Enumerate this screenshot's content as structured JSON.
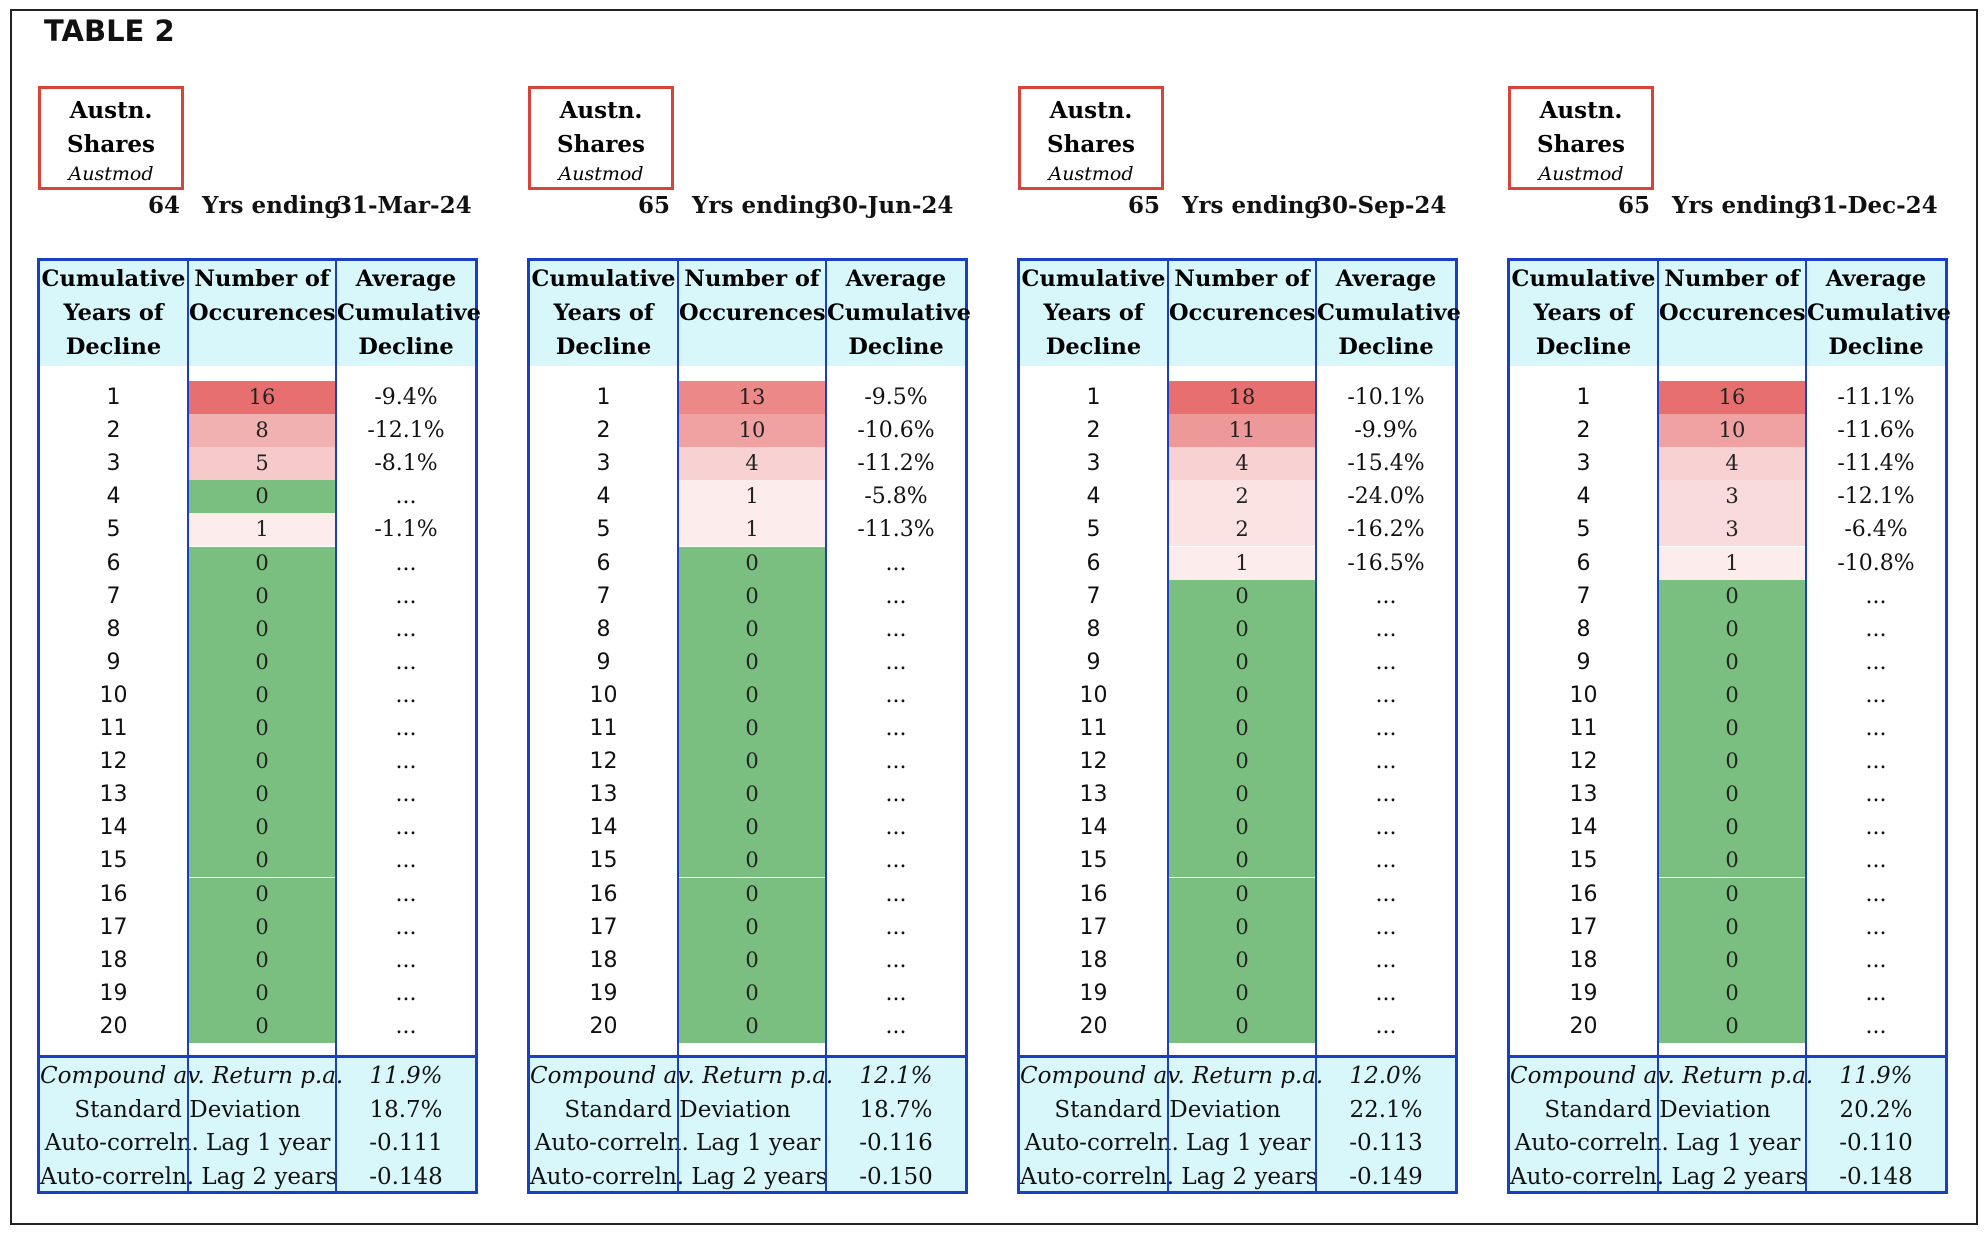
{
  "title": "TABLE 2",
  "colors": {
    "border": "#1a3fc4",
    "header_bg": "#d8f7fb",
    "label_border": "#d9443a",
    "zero_green": "#7abf7f"
  },
  "panels": [
    {
      "label": {
        "line1": "Austn.",
        "line2": "Shares",
        "line3": "Austmod"
      },
      "years": "64",
      "yrs_ending_label": "Yrs ending",
      "date": "31-Mar-24",
      "headers": [
        "Cumulative Years of Decline",
        "Number of Occurences",
        "Average Cumulative Decline"
      ],
      "rows": [
        {
          "year": "1",
          "count": "16",
          "avg": "-9.4%"
        },
        {
          "year": "2",
          "count": "8",
          "avg": "-12.1%"
        },
        {
          "year": "3",
          "count": "5",
          "avg": "-8.1%"
        },
        {
          "year": "4",
          "count": "0",
          "avg": "..."
        },
        {
          "year": "5",
          "count": "1",
          "avg": "-1.1%"
        },
        {
          "year": "6",
          "count": "0",
          "avg": "..."
        },
        {
          "year": "7",
          "count": "0",
          "avg": "..."
        },
        {
          "year": "8",
          "count": "0",
          "avg": "..."
        },
        {
          "year": "9",
          "count": "0",
          "avg": "..."
        },
        {
          "year": "10",
          "count": "0",
          "avg": "..."
        },
        {
          "year": "11",
          "count": "0",
          "avg": "..."
        },
        {
          "year": "12",
          "count": "0",
          "avg": "..."
        },
        {
          "year": "13",
          "count": "0",
          "avg": "..."
        },
        {
          "year": "14",
          "count": "0",
          "avg": "..."
        },
        {
          "year": "15",
          "count": "0",
          "avg": "..."
        },
        {
          "year": "16",
          "count": "0",
          "avg": "..."
        },
        {
          "year": "17",
          "count": "0",
          "avg": "..."
        },
        {
          "year": "18",
          "count": "0",
          "avg": "..."
        },
        {
          "year": "19",
          "count": "0",
          "avg": "..."
        },
        {
          "year": "20",
          "count": "0",
          "avg": "..."
        }
      ],
      "stats": [
        {
          "label": "Compound av. Return p.a.",
          "value": "11.9%"
        },
        {
          "label": "Standard Deviation",
          "value": "18.7%"
        },
        {
          "label": "Auto-correln. Lag 1 year",
          "value": "-0.111"
        },
        {
          "label": "Auto-correln. Lag 2 years",
          "value": "-0.148"
        }
      ]
    },
    {
      "label": {
        "line1": "Austn.",
        "line2": "Shares",
        "line3": "Austmod"
      },
      "years": "65",
      "yrs_ending_label": "Yrs ending",
      "date": "30-Jun-24",
      "headers": [
        "Cumulative Years of Decline",
        "Number of Occurences",
        "Average Cumulative Decline"
      ],
      "rows": [
        {
          "year": "1",
          "count": "13",
          "avg": "-9.5%"
        },
        {
          "year": "2",
          "count": "10",
          "avg": "-10.6%"
        },
        {
          "year": "3",
          "count": "4",
          "avg": "-11.2%"
        },
        {
          "year": "4",
          "count": "1",
          "avg": "-5.8%"
        },
        {
          "year": "5",
          "count": "1",
          "avg": "-11.3%"
        },
        {
          "year": "6",
          "count": "0",
          "avg": "..."
        },
        {
          "year": "7",
          "count": "0",
          "avg": "..."
        },
        {
          "year": "8",
          "count": "0",
          "avg": "..."
        },
        {
          "year": "9",
          "count": "0",
          "avg": "..."
        },
        {
          "year": "10",
          "count": "0",
          "avg": "..."
        },
        {
          "year": "11",
          "count": "0",
          "avg": "..."
        },
        {
          "year": "12",
          "count": "0",
          "avg": "..."
        },
        {
          "year": "13",
          "count": "0",
          "avg": "..."
        },
        {
          "year": "14",
          "count": "0",
          "avg": "..."
        },
        {
          "year": "15",
          "count": "0",
          "avg": "..."
        },
        {
          "year": "16",
          "count": "0",
          "avg": "..."
        },
        {
          "year": "17",
          "count": "0",
          "avg": "..."
        },
        {
          "year": "18",
          "count": "0",
          "avg": "..."
        },
        {
          "year": "19",
          "count": "0",
          "avg": "..."
        },
        {
          "year": "20",
          "count": "0",
          "avg": "..."
        }
      ],
      "stats": [
        {
          "label": "Compound av. Return p.a.",
          "value": "12.1%"
        },
        {
          "label": "Standard Deviation",
          "value": "18.7%"
        },
        {
          "label": "Auto-correln. Lag 1 year",
          "value": "-0.116"
        },
        {
          "label": "Auto-correln. Lag 2 years",
          "value": "-0.150"
        }
      ]
    },
    {
      "label": {
        "line1": "Austn.",
        "line2": "Shares",
        "line3": "Austmod"
      },
      "years": "65",
      "yrs_ending_label": "Yrs ending",
      "date": "30-Sep-24",
      "headers": [
        "Cumulative Years of Decline",
        "Number of Occurences",
        "Average Cumulative Decline"
      ],
      "rows": [
        {
          "year": "1",
          "count": "18",
          "avg": "-10.1%"
        },
        {
          "year": "2",
          "count": "11",
          "avg": "-9.9%"
        },
        {
          "year": "3",
          "count": "4",
          "avg": "-15.4%"
        },
        {
          "year": "4",
          "count": "2",
          "avg": "-24.0%"
        },
        {
          "year": "5",
          "count": "2",
          "avg": "-16.2%"
        },
        {
          "year": "6",
          "count": "1",
          "avg": "-16.5%"
        },
        {
          "year": "7",
          "count": "0",
          "avg": "..."
        },
        {
          "year": "8",
          "count": "0",
          "avg": "..."
        },
        {
          "year": "9",
          "count": "0",
          "avg": "..."
        },
        {
          "year": "10",
          "count": "0",
          "avg": "..."
        },
        {
          "year": "11",
          "count": "0",
          "avg": "..."
        },
        {
          "year": "12",
          "count": "0",
          "avg": "..."
        },
        {
          "year": "13",
          "count": "0",
          "avg": "..."
        },
        {
          "year": "14",
          "count": "0",
          "avg": "..."
        },
        {
          "year": "15",
          "count": "0",
          "avg": "..."
        },
        {
          "year": "16",
          "count": "0",
          "avg": "..."
        },
        {
          "year": "17",
          "count": "0",
          "avg": "..."
        },
        {
          "year": "18",
          "count": "0",
          "avg": "..."
        },
        {
          "year": "19",
          "count": "0",
          "avg": "..."
        },
        {
          "year": "20",
          "count": "0",
          "avg": "..."
        }
      ],
      "stats": [
        {
          "label": "Compound av. Return p.a.",
          "value": "12.0%"
        },
        {
          "label": "Standard Deviation",
          "value": "22.1%"
        },
        {
          "label": "Auto-correln. Lag 1 year",
          "value": "-0.113"
        },
        {
          "label": "Auto-correln. Lag 2 years",
          "value": "-0.149"
        }
      ]
    },
    {
      "label": {
        "line1": "Austn.",
        "line2": "Shares",
        "line3": "Austmod"
      },
      "years": "65",
      "yrs_ending_label": "Yrs ending",
      "date": "31-Dec-24",
      "headers": [
        "Cumulative Years of Decline",
        "Number of Occurences",
        "Average Cumulative Decline"
      ],
      "rows": [
        {
          "year": "1",
          "count": "16",
          "avg": "-11.1%"
        },
        {
          "year": "2",
          "count": "10",
          "avg": "-11.6%"
        },
        {
          "year": "3",
          "count": "4",
          "avg": "-11.4%"
        },
        {
          "year": "4",
          "count": "3",
          "avg": "-12.1%"
        },
        {
          "year": "5",
          "count": "3",
          "avg": "-6.4%"
        },
        {
          "year": "6",
          "count": "1",
          "avg": "-10.8%"
        },
        {
          "year": "7",
          "count": "0",
          "avg": "..."
        },
        {
          "year": "8",
          "count": "0",
          "avg": "..."
        },
        {
          "year": "9",
          "count": "0",
          "avg": "..."
        },
        {
          "year": "10",
          "count": "0",
          "avg": "..."
        },
        {
          "year": "11",
          "count": "0",
          "avg": "..."
        },
        {
          "year": "12",
          "count": "0",
          "avg": "..."
        },
        {
          "year": "13",
          "count": "0",
          "avg": "..."
        },
        {
          "year": "14",
          "count": "0",
          "avg": "..."
        },
        {
          "year": "15",
          "count": "0",
          "avg": "..."
        },
        {
          "year": "16",
          "count": "0",
          "avg": "..."
        },
        {
          "year": "17",
          "count": "0",
          "avg": "..."
        },
        {
          "year": "18",
          "count": "0",
          "avg": "..."
        },
        {
          "year": "19",
          "count": "0",
          "avg": "..."
        },
        {
          "year": "20",
          "count": "0",
          "avg": "..."
        }
      ],
      "stats": [
        {
          "label": "Compound av. Return p.a.",
          "value": "11.9%"
        },
        {
          "label": "Standard Deviation",
          "value": "20.2%"
        },
        {
          "label": "Auto-correln. Lag 1 year",
          "value": "-0.110"
        },
        {
          "label": "Auto-correln. Lag 2 years",
          "value": "-0.148"
        }
      ]
    }
  ]
}
